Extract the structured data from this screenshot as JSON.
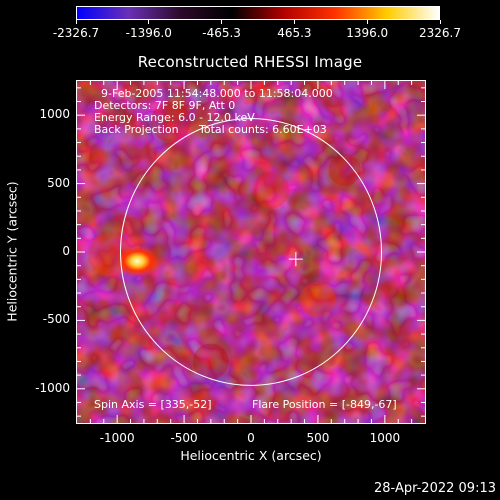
{
  "window": {
    "title": "Reconstructed RHESSI Image"
  },
  "colorbar": {
    "ticks": [
      "-2326.7",
      "-1396.0",
      "-465.3",
      "465.3",
      "1396.0",
      "2326.7"
    ],
    "colors": [
      "#0000ff",
      "#6a2fb5",
      "#2c0a2a",
      "#000000",
      "#b30000",
      "#ff3300",
      "#ffcc00",
      "#ffffff"
    ]
  },
  "image_info": {
    "time_range": "9-Feb-2005 11:54:48.000 to 11:58:04.000",
    "detectors": "Detectors: 7F 8F 9F, Att 0",
    "energy_range": "Energy Range: 6.0 - 12.0 keV",
    "method": "Back Projection",
    "total_counts": "Total counts: 6.60E+03",
    "spin_axis": "Spin Axis = [335,-52]",
    "flare_position": "Flare Position = [-849,-67]"
  },
  "axes": {
    "xlabel": "Heliocentric X (arcsec)",
    "ylabel": "Heliocentric Y (arcsec)",
    "x_ticks": [
      "-1000",
      "-500",
      "0",
      "500",
      "1000"
    ],
    "y_ticks": [
      "1000",
      "500",
      "0",
      "-500",
      "-1000"
    ],
    "x_range": [
      -1300,
      1300
    ],
    "y_range": [
      -1250,
      1250
    ]
  },
  "footer": {
    "timestamp": "28-Apr-2022 09:13"
  }
}
